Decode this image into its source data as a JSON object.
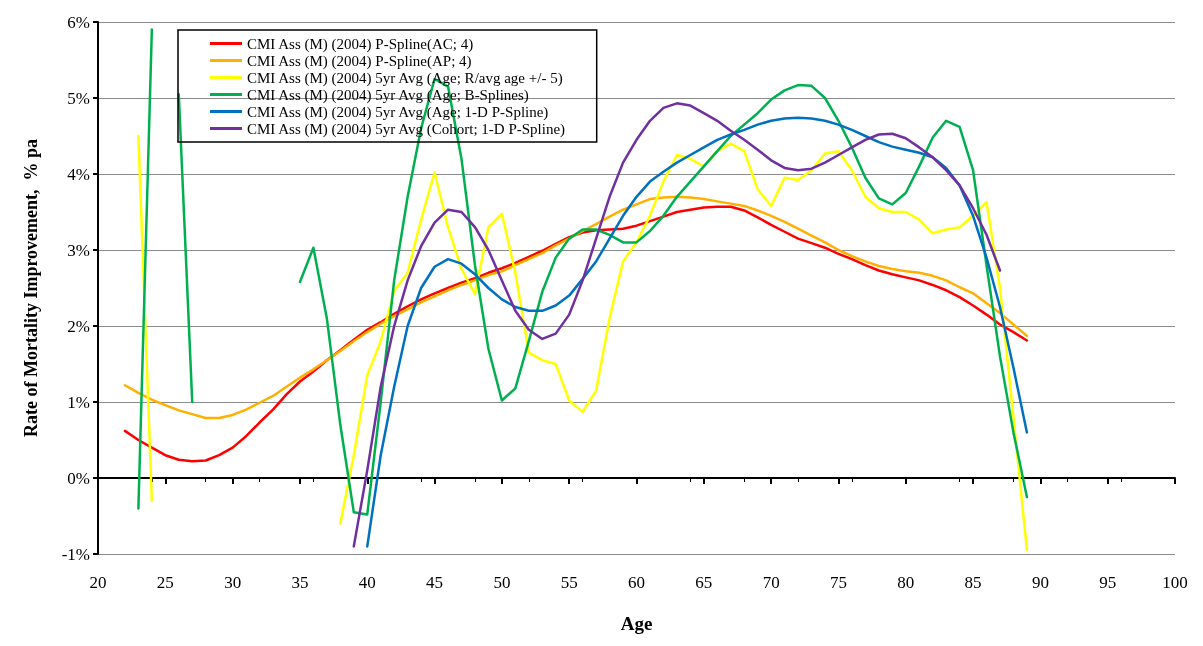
{
  "chart_data": {
    "type": "line",
    "xlabel": "Age",
    "ylabel": "Rate of Mortality Improvement,  % pa",
    "xlim": [
      20,
      100
    ],
    "xticks": [
      20,
      25,
      30,
      35,
      40,
      45,
      50,
      55,
      60,
      65,
      70,
      75,
      80,
      85,
      90,
      95,
      100
    ],
    "ylim": [
      -1,
      6
    ],
    "yticks": [
      {
        "value": -1,
        "label": "-1%"
      },
      {
        "value": 0,
        "label": "0%"
      },
      {
        "value": 1,
        "label": "1%"
      },
      {
        "value": 2,
        "label": "2%"
      },
      {
        "value": 3,
        "label": "3%"
      },
      {
        "value": 4,
        "label": "4%"
      },
      {
        "value": 5,
        "label": "5%"
      },
      {
        "value": 6,
        "label": "6%"
      }
    ],
    "grid": "y",
    "legend": "top left",
    "marker": "none",
    "line_style": "solid",
    "series": [
      {
        "name": "CMI Ass (M) (2004) P-Spline(AC; 4)",
        "color": "#ff0000",
        "x": [
          22,
          23,
          24,
          25,
          26,
          27,
          28,
          29,
          30,
          31,
          32,
          33,
          34,
          35,
          36,
          37,
          38,
          39,
          40,
          41,
          42,
          43,
          44,
          45,
          46,
          47,
          48,
          49,
          50,
          51,
          52,
          53,
          54,
          55,
          56,
          57,
          58,
          59,
          60,
          61,
          62,
          63,
          64,
          65,
          66,
          67,
          68,
          69,
          70,
          71,
          72,
          73,
          74,
          75,
          76,
          77,
          78,
          79,
          80,
          81,
          82,
          83,
          84,
          85,
          86,
          87,
          88,
          89
        ],
        "values": [
          0.62,
          0.5,
          0.4,
          0.3,
          0.24,
          0.22,
          0.23,
          0.3,
          0.4,
          0.55,
          0.73,
          0.9,
          1.1,
          1.27,
          1.4,
          1.55,
          1.68,
          1.82,
          1.95,
          2.05,
          2.16,
          2.26,
          2.35,
          2.43,
          2.5,
          2.57,
          2.63,
          2.7,
          2.76,
          2.83,
          2.91,
          2.99,
          3.08,
          3.17,
          3.23,
          3.26,
          3.27,
          3.28,
          3.32,
          3.38,
          3.44,
          3.5,
          3.53,
          3.56,
          3.57,
          3.57,
          3.52,
          3.43,
          3.33,
          3.24,
          3.15,
          3.09,
          3.03,
          2.95,
          2.88,
          2.8,
          2.73,
          2.68,
          2.64,
          2.6,
          2.54,
          2.47,
          2.38,
          2.27,
          2.15,
          2.02,
          1.92,
          1.81
        ]
      },
      {
        "name": "CMI Ass (M) (2004) P-Spline(AP; 4)",
        "color": "#ffb000",
        "x": [
          22,
          23,
          24,
          25,
          26,
          27,
          28,
          29,
          30,
          31,
          32,
          33,
          34,
          35,
          36,
          37,
          38,
          39,
          40,
          41,
          42,
          43,
          44,
          45,
          46,
          47,
          48,
          49,
          50,
          51,
          52,
          53,
          54,
          55,
          56,
          57,
          58,
          59,
          60,
          61,
          62,
          63,
          64,
          65,
          66,
          67,
          68,
          69,
          70,
          71,
          72,
          73,
          74,
          75,
          76,
          77,
          78,
          79,
          80,
          81,
          82,
          83,
          84,
          85,
          86,
          87,
          88,
          89
        ],
        "values": [
          1.22,
          1.12,
          1.03,
          0.96,
          0.89,
          0.84,
          0.79,
          0.79,
          0.83,
          0.9,
          0.99,
          1.08,
          1.2,
          1.32,
          1.43,
          1.55,
          1.67,
          1.8,
          1.92,
          2.03,
          2.13,
          2.22,
          2.31,
          2.39,
          2.47,
          2.54,
          2.6,
          2.67,
          2.72,
          2.8,
          2.88,
          2.96,
          3.06,
          3.15,
          3.25,
          3.34,
          3.44,
          3.53,
          3.6,
          3.67,
          3.69,
          3.7,
          3.69,
          3.67,
          3.64,
          3.61,
          3.58,
          3.52,
          3.45,
          3.37,
          3.28,
          3.19,
          3.1,
          3.0,
          2.92,
          2.85,
          2.79,
          2.75,
          2.72,
          2.7,
          2.66,
          2.6,
          2.51,
          2.43,
          2.3,
          2.17,
          2.02,
          1.87
        ]
      },
      {
        "name": "CMI Ass (M) (2004) 5yr Avg (Age; R/avg age +/- 5)",
        "color": "#ffff00",
        "x": [
          23,
          24,
          25,
          38,
          39,
          40,
          41,
          42,
          43,
          44,
          45,
          46,
          47,
          48,
          49,
          50,
          51,
          52,
          53,
          54,
          55,
          56,
          57,
          58,
          59,
          60,
          61,
          62,
          63,
          64,
          65,
          66,
          67,
          68,
          69,
          70,
          71,
          72,
          73,
          74,
          75,
          76,
          77,
          78,
          79,
          80,
          81,
          82,
          83,
          84,
          85,
          86,
          87,
          88,
          89
        ],
        "values": [
          4.5,
          -0.3,
          null,
          -0.6,
          0.3,
          1.35,
          1.8,
          2.46,
          2.7,
          3.4,
          4.02,
          3.3,
          2.75,
          2.42,
          3.3,
          3.48,
          2.7,
          1.65,
          1.55,
          1.5,
          1.02,
          0.87,
          1.15,
          2.1,
          2.85,
          3.1,
          3.45,
          3.9,
          4.25,
          4.2,
          4.1,
          4.3,
          4.4,
          4.3,
          3.8,
          3.58,
          3.95,
          3.92,
          4.05,
          4.27,
          4.3,
          4.05,
          3.7,
          3.55,
          3.5,
          3.5,
          3.4,
          3.22,
          3.27,
          3.3,
          3.45,
          3.63,
          2.5,
          0.8,
          -0.95
        ]
      },
      {
        "name": "CMI Ass (M) (2004) 5yr Avg (Age; B-Splines)",
        "color": "#00b050",
        "x": [
          23,
          24,
          25,
          26,
          27,
          28,
          35,
          36,
          37,
          38,
          39,
          40,
          41,
          42,
          43,
          44,
          45,
          46,
          47,
          48,
          49,
          50,
          51,
          52,
          53,
          54,
          55,
          56,
          57,
          58,
          59,
          60,
          61,
          62,
          63,
          64,
          65,
          66,
          67,
          68,
          69,
          70,
          71,
          72,
          73,
          74,
          75,
          76,
          77,
          78,
          79,
          80,
          81,
          82,
          83,
          84,
          85,
          86,
          87,
          88,
          89
        ],
        "values": [
          -0.4,
          5.9,
          null,
          5.05,
          1.0,
          null,
          2.58,
          3.03,
          2.1,
          0.7,
          -0.45,
          -0.48,
          1.0,
          2.6,
          3.7,
          4.6,
          5.25,
          5.15,
          4.2,
          2.8,
          1.7,
          1.02,
          1.18,
          1.8,
          2.45,
          2.9,
          3.15,
          3.27,
          3.27,
          3.2,
          3.1,
          3.1,
          3.25,
          3.45,
          3.7,
          3.9,
          4.1,
          4.3,
          4.5,
          4.65,
          4.8,
          4.98,
          5.1,
          5.17,
          5.16,
          5.0,
          4.7,
          4.35,
          3.95,
          3.68,
          3.6,
          3.75,
          4.1,
          4.48,
          4.7,
          4.62,
          4.05,
          2.8,
          1.6,
          0.6,
          -0.25
        ]
      },
      {
        "name": "CMI Ass (M) (2004) 5yr Avg (Age; 1-D P-Spline)",
        "color": "#0070c0",
        "x": [
          40,
          41,
          42,
          43,
          44,
          45,
          46,
          47,
          48,
          49,
          50,
          51,
          52,
          53,
          54,
          55,
          56,
          57,
          58,
          59,
          60,
          61,
          62,
          63,
          64,
          65,
          66,
          67,
          68,
          69,
          70,
          71,
          72,
          73,
          74,
          75,
          76,
          77,
          78,
          79,
          80,
          81,
          82,
          83,
          84,
          85,
          86,
          87,
          88,
          89
        ],
        "values": [
          -0.9,
          0.3,
          1.2,
          2.0,
          2.5,
          2.78,
          2.88,
          2.82,
          2.68,
          2.5,
          2.35,
          2.25,
          2.2,
          2.2,
          2.27,
          2.4,
          2.62,
          2.85,
          3.15,
          3.45,
          3.7,
          3.9,
          4.03,
          4.15,
          4.25,
          4.35,
          4.45,
          4.52,
          4.58,
          4.65,
          4.7,
          4.73,
          4.74,
          4.73,
          4.7,
          4.65,
          4.58,
          4.5,
          4.42,
          4.36,
          4.32,
          4.28,
          4.22,
          4.08,
          3.85,
          3.45,
          2.9,
          2.25,
          1.45,
          0.6
        ]
      },
      {
        "name": "CMI Ass (M) (2004) 5yr Avg (Cohort; 1-D P-Spline)",
        "color": "#7030a0",
        "x": [
          39,
          40,
          41,
          42,
          43,
          44,
          45,
          46,
          47,
          48,
          49,
          50,
          51,
          52,
          53,
          54,
          55,
          56,
          57,
          58,
          59,
          60,
          61,
          62,
          63,
          64,
          65,
          66,
          67,
          68,
          69,
          70,
          71,
          72,
          73,
          74,
          75,
          76,
          77,
          78,
          79,
          80,
          81,
          82,
          83,
          84,
          85,
          86,
          87
        ],
        "values": [
          -0.9,
          0.1,
          1.2,
          2.0,
          2.6,
          3.05,
          3.36,
          3.53,
          3.5,
          3.3,
          3.0,
          2.6,
          2.2,
          1.95,
          1.83,
          1.9,
          2.15,
          2.6,
          3.15,
          3.7,
          4.15,
          4.45,
          4.7,
          4.87,
          4.93,
          4.9,
          4.8,
          4.7,
          4.57,
          4.45,
          4.32,
          4.18,
          4.08,
          4.05,
          4.07,
          4.15,
          4.25,
          4.35,
          4.45,
          4.52,
          4.53,
          4.47,
          4.35,
          4.22,
          4.05,
          3.85,
          3.55,
          3.2,
          2.73
        ]
      }
    ]
  }
}
